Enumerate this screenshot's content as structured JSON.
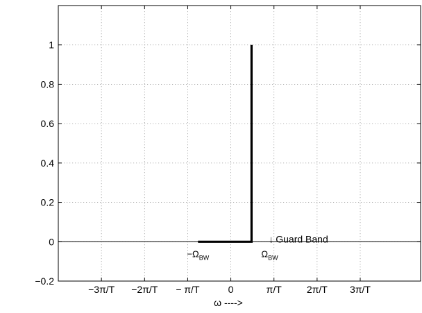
{
  "chart_data": {
    "type": "line",
    "title": "",
    "xlabel": "ω ---->",
    "ylabel": "",
    "xlim": [
      -4,
      4.4
    ],
    "ylim": [
      -0.2,
      1.2
    ],
    "grid": true,
    "x_ticks": [
      {
        "value": -3,
        "label": "−3π/T"
      },
      {
        "value": -2,
        "label": "−2π/T"
      },
      {
        "value": -1,
        "label": "− π/T"
      },
      {
        "value": 0,
        "label": "0"
      },
      {
        "value": 1,
        "label": "π/T"
      },
      {
        "value": 2,
        "label": "2π/T"
      },
      {
        "value": 3,
        "label": "3π/T"
      }
    ],
    "y_ticks": [
      {
        "value": -0.2,
        "label": "−0.2"
      },
      {
        "value": 0,
        "label": "0"
      },
      {
        "value": 0.2,
        "label": "0.2"
      },
      {
        "value": 0.4,
        "label": "0.4"
      },
      {
        "value": 0.6,
        "label": "0.6"
      },
      {
        "value": 0.8,
        "label": "0.8"
      },
      {
        "value": 1,
        "label": "1"
      }
    ],
    "series": [
      {
        "color": "#000000",
        "points": [
          [
            -0.76,
            0
          ],
          [
            0.48,
            0
          ],
          [
            0.48,
            1
          ]
        ]
      }
    ],
    "annotations": {
      "neg_bw": {
        "main": "−Ω",
        "sub": "BW",
        "x": -0.76,
        "y": 0
      },
      "pos_bw": {
        "main": "Ω",
        "sub": "BW",
        "x": 0.9,
        "y": 0
      },
      "guard_band": {
        "arrow": "↓",
        "text": "Guard Band",
        "x": 0.88,
        "y": 0
      }
    }
  }
}
